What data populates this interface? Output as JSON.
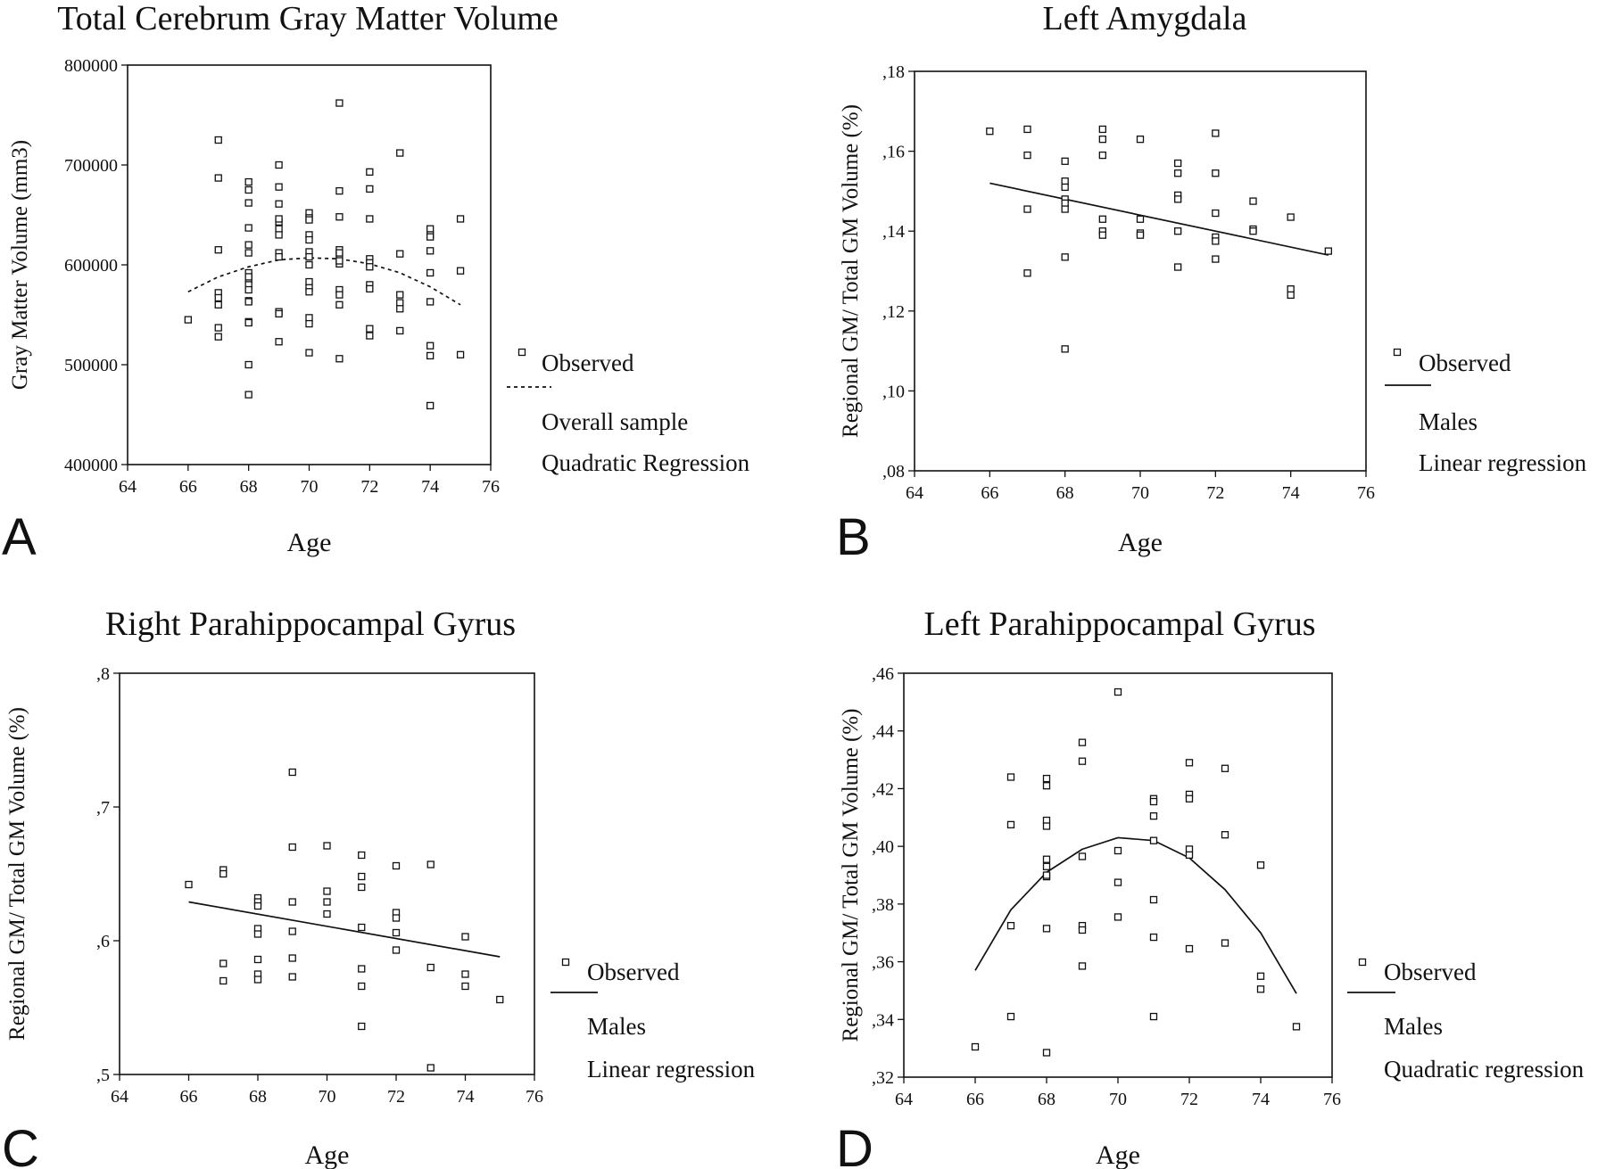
{
  "chart_data": [
    {
      "panel": "A",
      "type": "scatter",
      "title": "Total Cerebrum Gray Matter Volume",
      "xlabel": "Age",
      "ylabel": "Gray Matter Volume (mm3)",
      "xlim": [
        64,
        76
      ],
      "ylim": [
        400000,
        800000
      ],
      "xticks": [
        64,
        66,
        68,
        70,
        72,
        74,
        76
      ],
      "yticks": [
        400000,
        500000,
        600000,
        700000,
        800000
      ],
      "xtick_labels": [
        "64",
        "66",
        "68",
        "70",
        "72",
        "74",
        "76"
      ],
      "ytick_labels": [
        "400000",
        "500000",
        "600000",
        "700000",
        "800000"
      ],
      "legend": {
        "position": "right",
        "observed": "Observed",
        "line_style": "dashed",
        "lines": [
          "Overall sample",
          "Quadratic Regression"
        ]
      },
      "series": [
        {
          "kind": "observed",
          "x": [
            66,
            67,
            67,
            67,
            67,
            67,
            67,
            67,
            67,
            68,
            68,
            68,
            68,
            68,
            68,
            68,
            68,
            68,
            68,
            68,
            68,
            68,
            68,
            68,
            68,
            68,
            69,
            69,
            69,
            69,
            69,
            69,
            69,
            69,
            69,
            69,
            69,
            69,
            70,
            70,
            70,
            70,
            70,
            70,
            70,
            70,
            70,
            70,
            70,
            70,
            70,
            70,
            71,
            71,
            71,
            71,
            71,
            71,
            71,
            71,
            71,
            71,
            71,
            71,
            72,
            72,
            72,
            72,
            72,
            72,
            72,
            72,
            72,
            72,
            73,
            73,
            73,
            73,
            73,
            73,
            74,
            74,
            74,
            74,
            74,
            74,
            74,
            74,
            74,
            75,
            75,
            75
          ],
          "y": [
            545000,
            725000,
            687000,
            615000,
            572000,
            567000,
            560000,
            537000,
            528000,
            500000,
            683000,
            675000,
            662000,
            637000,
            620000,
            612000,
            592000,
            585000,
            580000,
            575000,
            564000,
            543000,
            542000,
            470000,
            588000,
            563000,
            700000,
            678000,
            661000,
            643000,
            636000,
            630000,
            612000,
            608000,
            553000,
            551000,
            523000,
            646000,
            652000,
            647000,
            630000,
            613000,
            608000,
            600000,
            583000,
            577000,
            573000,
            547000,
            541000,
            512000,
            645000,
            625000,
            762000,
            674000,
            648000,
            615000,
            609000,
            601000,
            575000,
            570000,
            560000,
            506000,
            612000,
            604000,
            693000,
            676000,
            646000,
            606000,
            602000,
            580000,
            576000,
            536000,
            529000,
            598000,
            712000,
            611000,
            570000,
            562000,
            556000,
            534000,
            636000,
            630000,
            628000,
            614000,
            592000,
            563000,
            519000,
            509000,
            459000,
            646000,
            594000,
            510000
          ]
        },
        {
          "kind": "fit",
          "name": "Overall sample",
          "x": [
            66,
            67,
            68,
            69,
            70,
            71,
            72,
            73,
            74,
            75
          ],
          "y": [
            573000,
            588000,
            598000,
            605000,
            607000,
            606000,
            601000,
            592000,
            578000,
            560000
          ]
        }
      ]
    },
    {
      "panel": "B",
      "type": "scatter",
      "title": "Left Amygdala",
      "xlabel": "Age",
      "ylabel": "Regional GM/ Total GM Volume (%)",
      "xlim": [
        64,
        76
      ],
      "ylim": [
        0.08,
        0.18
      ],
      "xticks": [
        64,
        66,
        68,
        70,
        72,
        74,
        76
      ],
      "yticks": [
        0.08,
        0.1,
        0.12,
        0.14,
        0.16,
        0.18
      ],
      "xtick_labels": [
        "64",
        "66",
        "68",
        "70",
        "72",
        "74",
        "76"
      ],
      "ytick_labels": [
        ",08",
        ",10",
        ",12",
        ",14",
        ",16",
        ",18"
      ],
      "legend": {
        "position": "right",
        "observed": "Observed",
        "line_style": "solid",
        "lines": [
          "Males",
          "Linear regression"
        ]
      },
      "series": [
        {
          "kind": "observed",
          "x": [
            66,
            67,
            67,
            67,
            67,
            68,
            68,
            68,
            68,
            68,
            68,
            68,
            68,
            69,
            69,
            69,
            69,
            69,
            69,
            70,
            70,
            70,
            70,
            71,
            71,
            71,
            71,
            71,
            71,
            72,
            72,
            72,
            72,
            72,
            72,
            73,
            73,
            73,
            74,
            74,
            74,
            75
          ],
          "y": [
            0.165,
            0.1655,
            0.159,
            0.1455,
            0.1295,
            0.1575,
            0.1525,
            0.151,
            0.148,
            0.147,
            0.1455,
            0.1335,
            0.1105,
            0.1655,
            0.163,
            0.159,
            0.143,
            0.14,
            0.139,
            0.163,
            0.143,
            0.1395,
            0.139,
            0.157,
            0.1545,
            0.149,
            0.148,
            0.14,
            0.131,
            0.1645,
            0.1545,
            0.1445,
            0.1385,
            0.1375,
            0.133,
            0.1475,
            0.1405,
            0.14,
            0.1435,
            0.1255,
            0.124,
            0.135
          ]
        },
        {
          "kind": "fit",
          "name": "Males",
          "x": [
            66,
            75
          ],
          "y": [
            0.152,
            0.134
          ]
        }
      ]
    },
    {
      "panel": "C",
      "type": "scatter",
      "title": "Right Parahippocampal Gyrus",
      "xlabel": "Age",
      "ylabel": "Regional GM/ Total GM Volume (%)",
      "xlim": [
        64,
        76
      ],
      "ylim": [
        0.5,
        0.8
      ],
      "xticks": [
        64,
        66,
        68,
        70,
        72,
        74,
        76
      ],
      "yticks": [
        0.5,
        0.6,
        0.7,
        0.8
      ],
      "xtick_labels": [
        "64",
        "66",
        "68",
        "70",
        "72",
        "74",
        "76"
      ],
      "ytick_labels": [
        ",5",
        ",6",
        ",7",
        ",8"
      ],
      "legend": {
        "position": "right",
        "observed": "Observed",
        "line_style": "solid",
        "lines": [
          "Males",
          "Linear regression"
        ]
      },
      "series": [
        {
          "kind": "observed",
          "x": [
            66,
            67,
            67,
            67,
            67,
            68,
            68,
            68,
            68,
            68,
            68,
            68,
            68,
            69,
            69,
            69,
            69,
            69,
            69,
            70,
            70,
            70,
            70,
            71,
            71,
            71,
            71,
            71,
            71,
            71,
            72,
            72,
            72,
            72,
            72,
            73,
            73,
            73,
            74,
            74,
            74,
            75
          ],
          "y": [
            0.642,
            0.653,
            0.65,
            0.583,
            0.57,
            0.632,
            0.629,
            0.626,
            0.609,
            0.605,
            0.586,
            0.575,
            0.571,
            0.726,
            0.67,
            0.629,
            0.607,
            0.587,
            0.573,
            0.671,
            0.637,
            0.629,
            0.62,
            0.664,
            0.648,
            0.64,
            0.61,
            0.579,
            0.566,
            0.536,
            0.656,
            0.621,
            0.617,
            0.606,
            0.593,
            0.657,
            0.58,
            0.505,
            0.603,
            0.575,
            0.566,
            0.556
          ]
        },
        {
          "kind": "fit",
          "name": "Males",
          "x": [
            66,
            75
          ],
          "y": [
            0.629,
            0.588
          ]
        }
      ]
    },
    {
      "panel": "D",
      "type": "scatter",
      "title": "Left Parahippocampal Gyrus",
      "xlabel": "Age",
      "ylabel": "Regional GM/ Total GM Volume (%)",
      "xlim": [
        64,
        76
      ],
      "ylim": [
        0.32,
        0.46
      ],
      "xticks": [
        64,
        66,
        68,
        70,
        72,
        74,
        76
      ],
      "yticks": [
        0.32,
        0.34,
        0.36,
        0.38,
        0.4,
        0.42,
        0.44,
        0.46
      ],
      "xtick_labels": [
        "64",
        "66",
        "68",
        "70",
        "72",
        "74",
        "76"
      ],
      "ytick_labels": [
        ",32",
        ",34",
        ",36",
        ",38",
        ",40",
        ",42",
        ",44",
        ",46"
      ],
      "legend": {
        "position": "right",
        "observed": "Observed",
        "line_style": "solid",
        "lines": [
          "Males",
          "Quadratic regression"
        ]
      },
      "series": [
        {
          "kind": "observed",
          "x": [
            66,
            67,
            67,
            67,
            67,
            68,
            68,
            68,
            68,
            68,
            68,
            68,
            68,
            68,
            68,
            69,
            69,
            69,
            69,
            69,
            69,
            70,
            70,
            70,
            70,
            71,
            71,
            71,
            71,
            71,
            71,
            71,
            72,
            72,
            72,
            72,
            72,
            72,
            73,
            73,
            73,
            74,
            74,
            74,
            75
          ],
          "y": [
            0.3305,
            0.424,
            0.4075,
            0.3725,
            0.341,
            0.4235,
            0.421,
            0.409,
            0.407,
            0.3955,
            0.393,
            0.3895,
            0.3715,
            0.3285,
            0.39,
            0.436,
            0.4295,
            0.3965,
            0.3725,
            0.371,
            0.3585,
            0.4535,
            0.3985,
            0.3875,
            0.3755,
            0.4165,
            0.4155,
            0.4105,
            0.402,
            0.3815,
            0.3685,
            0.341,
            0.429,
            0.418,
            0.4165,
            0.399,
            0.397,
            0.3645,
            0.427,
            0.404,
            0.3665,
            0.3935,
            0.355,
            0.3505,
            0.3375
          ]
        },
        {
          "kind": "fit",
          "name": "Males",
          "x": [
            66,
            67,
            68,
            69,
            70,
            71,
            72,
            73,
            74,
            75
          ],
          "y": [
            0.357,
            0.378,
            0.391,
            0.399,
            0.403,
            0.402,
            0.396,
            0.385,
            0.37,
            0.349
          ]
        }
      ]
    }
  ],
  "panel_labels": [
    "A",
    "B",
    "C",
    "D"
  ]
}
